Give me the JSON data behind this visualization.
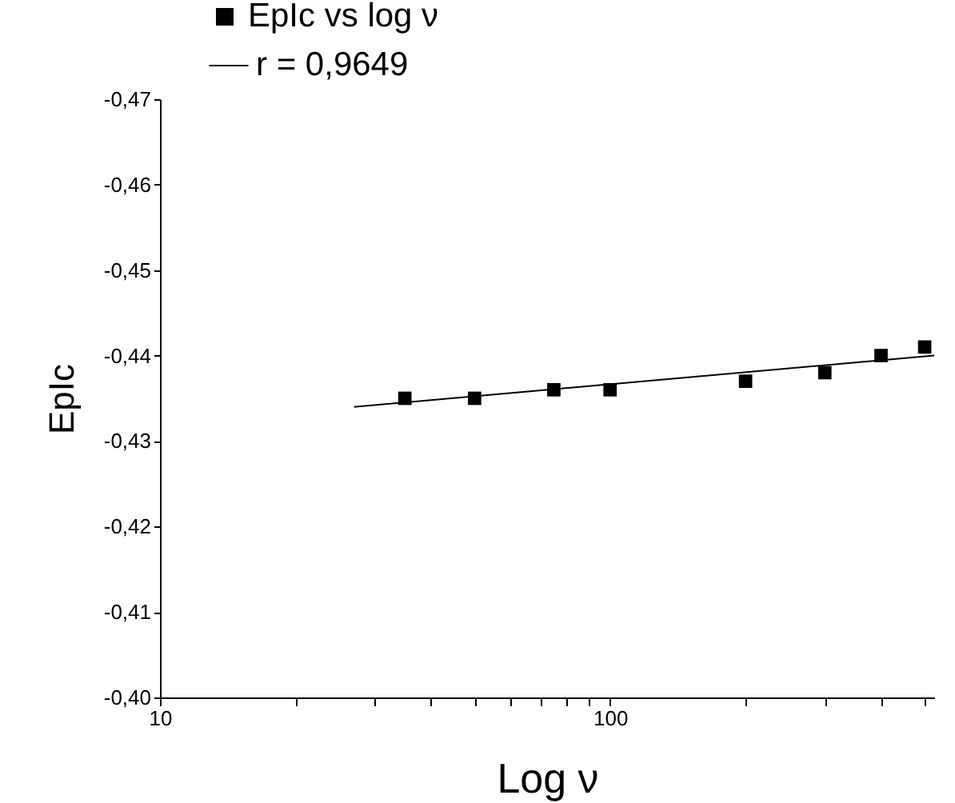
{
  "chart_data": {
    "type": "scatter",
    "xlabel": "Log ν",
    "ylabel": "EpIc",
    "log": "x",
    "grid": false,
    "legend": "top",
    "xlim": [
      10,
      525
    ],
    "ylim": [
      -0.4,
      -0.47
    ],
    "xticks": [
      10,
      {
        "value": 20,
        "label": null
      },
      {
        "value": 30,
        "label": null
      },
      {
        "value": 40,
        "label": null
      },
      {
        "value": 50,
        "label": null
      },
      {
        "value": 60,
        "label": null
      },
      {
        "value": 70,
        "label": null
      },
      {
        "value": 80,
        "label": null
      },
      {
        "value": 90,
        "label": null
      },
      100,
      {
        "value": 200,
        "label": null
      },
      {
        "value": 300,
        "label": null
      },
      {
        "value": 400,
        "label": null
      },
      {
        "value": 500,
        "label": null
      }
    ],
    "yticks": [
      {
        "value": -0.4,
        "label": "-0,40"
      },
      {
        "value": -0.41,
        "label": "-0,41"
      },
      {
        "value": -0.42,
        "label": "-0,42"
      },
      {
        "value": -0.43,
        "label": "-0,43"
      },
      {
        "value": -0.44,
        "label": "-0,44"
      },
      {
        "value": -0.45,
        "label": "-0,45"
      },
      {
        "value": -0.46,
        "label": "-0,46"
      },
      {
        "value": -0.47,
        "label": "-0,47"
      }
    ],
    "series": [
      {
        "name": "EpIc vs log ν",
        "marker": "square",
        "color": "#000000",
        "x": [
          35,
          50,
          75,
          100,
          200,
          300,
          400,
          500
        ],
        "values": [
          -0.435,
          -0.435,
          -0.436,
          -0.436,
          -0.437,
          -0.438,
          -0.44,
          -0.441
        ]
      },
      {
        "name": "r = 0,9649",
        "type": "line",
        "line_style": "solid",
        "color": "#000000",
        "x": [
          27,
          525
        ],
        "values": [
          -0.434,
          -0.44
        ]
      }
    ]
  }
}
